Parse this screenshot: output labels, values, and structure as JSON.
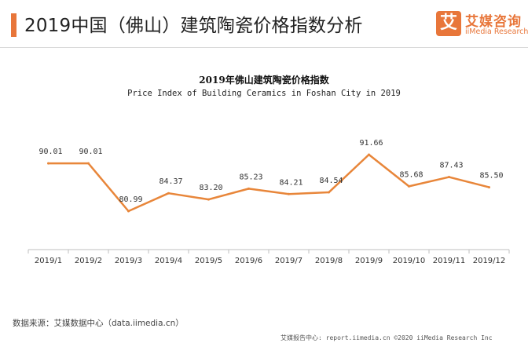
{
  "header": {
    "title": "2019中国（佛山）建筑陶瓷价格指数分析"
  },
  "logo": {
    "mark": "艾",
    "name": "艾媒咨询",
    "sub": "iiMedia Research"
  },
  "chart_data": {
    "type": "line",
    "title": "2019年佛山建筑陶瓷价格指数",
    "subtitle": "Price Index of Building Ceramics in Foshan City in 2019",
    "categories": [
      "2019/1",
      "2019/2",
      "2019/3",
      "2019/4",
      "2019/5",
      "2019/6",
      "2019/7",
      "2019/8",
      "2019/9",
      "2019/10",
      "2019/11",
      "2019/12"
    ],
    "values": [
      90.01,
      90.01,
      80.99,
      84.37,
      83.2,
      85.23,
      84.21,
      84.54,
      91.66,
      85.68,
      87.43,
      85.5
    ],
    "labels": [
      "90.01",
      "90.01",
      "80.99",
      "84.37",
      "83.20",
      "85.23",
      "84.21",
      "84.54",
      "91.66",
      "85.68",
      "87.43",
      "85.50"
    ],
    "color": "#e8863a",
    "grid": false,
    "legend": "none"
  },
  "source": "数据来源：艾媒数据中心（data.iimedia.cn）",
  "footer": "艾媒报告中心: report.iimedia.cn ©2020   iiMedia Research Inc"
}
